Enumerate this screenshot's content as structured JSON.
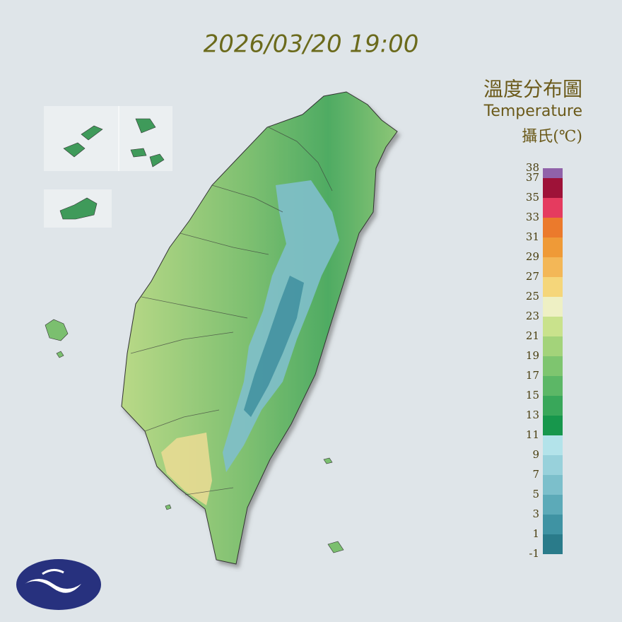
{
  "timestamp": "2026/03/20 19:00",
  "title": "溫度分布圖",
  "subtitle": "Temperature",
  "unit": "攝氏(℃)",
  "legend": {
    "ticks": [
      -1,
      1,
      3,
      5,
      7,
      9,
      11,
      13,
      15,
      17,
      19,
      21,
      23,
      25,
      27,
      29,
      31,
      33,
      35,
      37,
      38
    ],
    "colors": [
      "#2a7b8a",
      "#3f93a3",
      "#5caab8",
      "#7cbfcb",
      "#98d1db",
      "#b3e3ea",
      "#17974c",
      "#39a75a",
      "#5cb766",
      "#7ec56f",
      "#a3d37a",
      "#c9e28c",
      "#eef0c4",
      "#f5d67a",
      "#f3b757",
      "#ef9a37",
      "#eb7a2c",
      "#e53b5f",
      "#9e1238",
      "#9062a9"
    ]
  }
}
